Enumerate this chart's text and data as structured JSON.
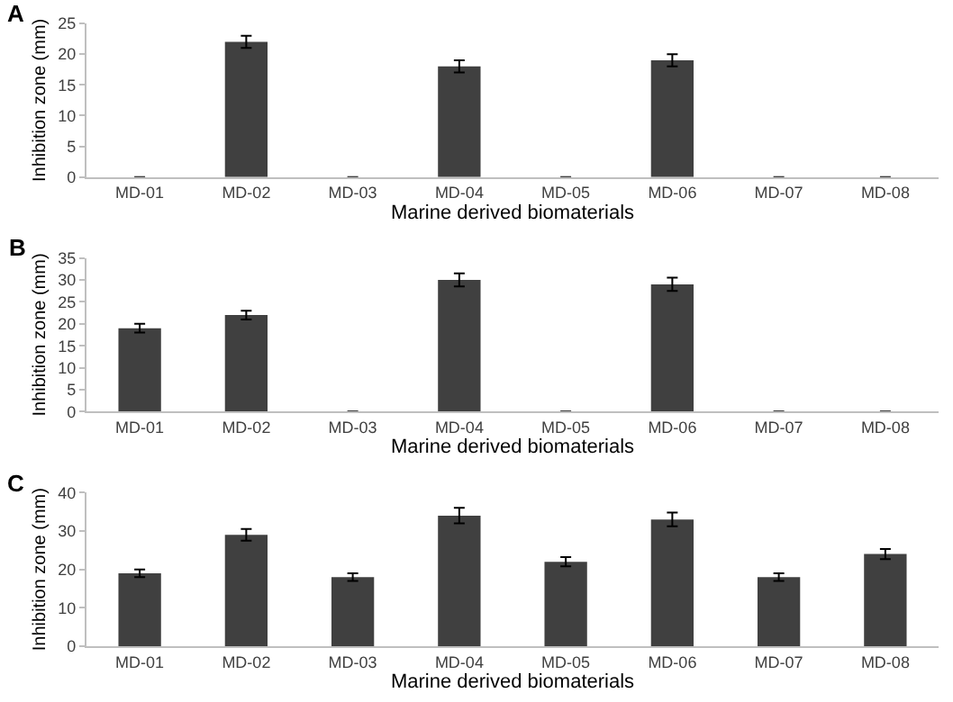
{
  "chart_data": [
    {
      "type": "bar",
      "title": "A",
      "xlabel": "Marine derived biomaterials",
      "ylabel": "Inhibition zone (mm)",
      "categories": [
        "MD-01",
        "MD-02",
        "MD-03",
        "MD-04",
        "MD-05",
        "MD-06",
        "MD-07",
        "MD-08"
      ],
      "color": "#404040",
      "values": [
        0,
        22,
        0,
        18,
        0,
        19,
        0,
        0
      ],
      "errors": [
        null,
        1,
        null,
        1,
        null,
        1,
        null,
        null
      ],
      "ylim": [
        0,
        25
      ],
      "yticks": [
        0,
        5,
        10,
        15,
        20,
        25
      ],
      "grid": false
    },
    {
      "type": "bar",
      "title": "B",
      "xlabel": "Marine derived biomaterials",
      "ylabel": "Inhibition zone (mm)",
      "categories": [
        "MD-01",
        "MD-02",
        "MD-03",
        "MD-04",
        "MD-05",
        "MD-06",
        "MD-07",
        "MD-08"
      ],
      "color": "#404040",
      "values": [
        19,
        22,
        0,
        30,
        0,
        29,
        0,
        0
      ],
      "errors": [
        1,
        1,
        null,
        1.5,
        null,
        1.5,
        null,
        null
      ],
      "ylim": [
        0,
        35
      ],
      "yticks": [
        0,
        5,
        10,
        15,
        20,
        25,
        30,
        35
      ],
      "grid": false
    },
    {
      "type": "bar",
      "title": "C",
      "xlabel": "Marine derived biomaterials",
      "ylabel": "Inhibition zone (mm)",
      "categories": [
        "MD-01",
        "MD-02",
        "MD-03",
        "MD-04",
        "MD-05",
        "MD-06",
        "MD-07",
        "MD-08"
      ],
      "color": "#404040",
      "values": [
        19,
        29,
        18,
        34,
        22,
        33,
        18,
        24
      ],
      "errors": [
        1,
        1.5,
        1,
        2,
        1.2,
        1.8,
        1,
        1.3
      ],
      "ylim": [
        0,
        40
      ],
      "yticks": [
        0,
        10,
        20,
        30,
        40
      ],
      "grid": false
    }
  ]
}
